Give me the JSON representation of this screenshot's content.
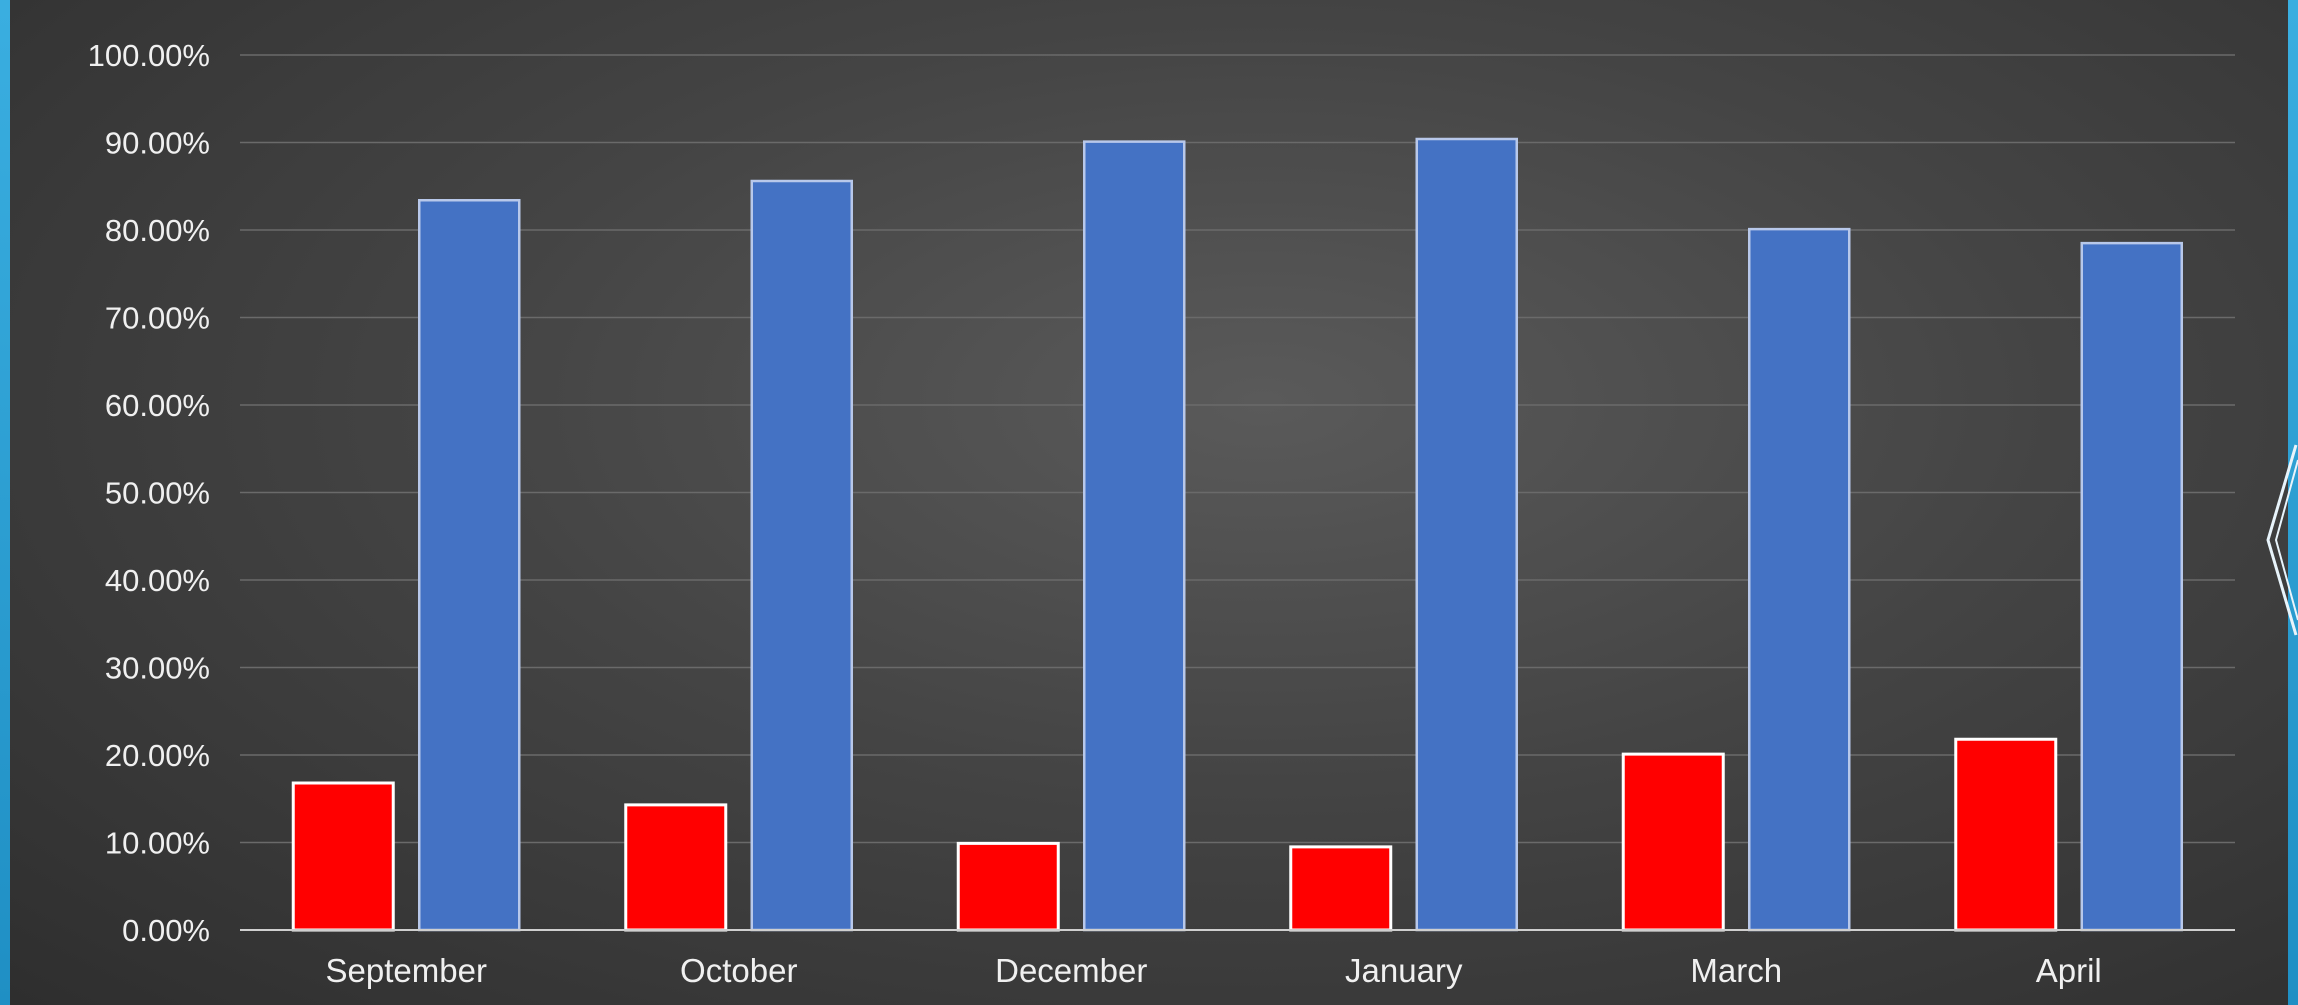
{
  "chart_data": {
    "type": "bar",
    "categories": [
      "September",
      "October",
      "December",
      "January",
      "March",
      "April"
    ],
    "series": [
      {
        "color": "#ff0000",
        "values": [
          16.8,
          14.3,
          9.9,
          9.5,
          20.1,
          21.8
        ]
      },
      {
        "color": "#4472c4",
        "values": [
          83.4,
          85.6,
          90.1,
          90.4,
          80.1,
          78.5
        ]
      }
    ],
    "y_ticks": [
      "0.00%",
      "10.00%",
      "20.00%",
      "30.00%",
      "40.00%",
      "50.00%",
      "60.00%",
      "70.00%",
      "80.00%",
      "90.00%",
      "100.00%"
    ],
    "ylim": [
      0,
      100
    ],
    "grid": true,
    "legend": "none",
    "title": "",
    "xlabel": "",
    "ylabel": ""
  }
}
